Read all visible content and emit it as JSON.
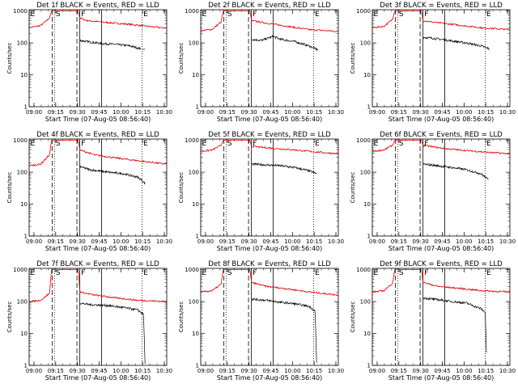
{
  "panels": [
    {
      "title": "Det 1f BLACK = Events, RED = LLD"
    },
    {
      "title": "Det 2f BLACK = Events, RED = LLD"
    },
    {
      "title": "Det 3f BLACK = Events, RED = LLD"
    },
    {
      "title": "Det 4f BLACK = Events, RED = LLD"
    },
    {
      "title": "Det 5f BLACK = Events, RED = LLD"
    },
    {
      "title": "Det 6f BLACK = Events, RED = LLD"
    },
    {
      "title": "Det 7f BLACK = Events, RED = LLD"
    },
    {
      "title": "Det 8f BLACK = Events, RED = LLD"
    },
    {
      "title": "Det 9f BLACK = Events, RED = LLD"
    }
  ],
  "xlabel": "Start Time (07-Aug-05 08:56:40)",
  "ylabel": "Counts/sec",
  "xticks": [
    "09:00",
    "09:15",
    "09:30",
    "09:45",
    "10:00",
    "10:15",
    "10:30"
  ],
  "yticks": [
    "1",
    "10",
    "100",
    "1000"
  ],
  "markers": [
    "E",
    "S",
    "F",
    "E"
  ],
  "colors": {
    "events": "#000000",
    "lld": "#e00000",
    "axis": "#000000"
  },
  "chart_data": {
    "type": "line",
    "scale_y": "log",
    "ylim": [
      1,
      1100
    ],
    "x_unit": "minutes after 08:56:40",
    "xlim": [
      0,
      95
    ],
    "x_tick_minutes": [
      3.33,
      18.33,
      33.33,
      48.33,
      63.33,
      78.33,
      93.33
    ],
    "marker_lines": [
      {
        "label": "E",
        "x": 0,
        "style": "dotted"
      },
      {
        "label": "",
        "x": 16,
        "style": "dashed"
      },
      {
        "label": "S",
        "x": 17.5,
        "style": "dotted"
      },
      {
        "label": "",
        "x": 33,
        "style": "dashed"
      },
      {
        "label": "F",
        "x": 35,
        "style": "solid"
      },
      {
        "label": "",
        "x": 50,
        "style": "solid"
      },
      {
        "label": "E",
        "x": 78,
        "style": "dotted"
      }
    ],
    "detectors": [
      {
        "events": [
          [
            35,
            120
          ],
          [
            40,
            110
          ],
          [
            50,
            95
          ],
          [
            60,
            90
          ],
          [
            70,
            80
          ],
          [
            77,
            65
          ]
        ],
        "lld": [
          [
            0,
            300
          ],
          [
            8,
            350
          ],
          [
            14,
            600
          ],
          [
            15.5,
            1000
          ],
          [
            34,
            1000
          ],
          [
            35,
            600
          ],
          [
            40,
            500
          ],
          [
            55,
            430
          ],
          [
            70,
            380
          ],
          [
            85,
            320
          ],
          [
            95,
            290
          ]
        ],
        "events_end": 78,
        "tail": [
          [
            78,
            65
          ],
          [
            79,
            62
          ],
          [
            80,
            64
          ]
        ]
      },
      {
        "events": [
          [
            35,
            130
          ],
          [
            42,
            120
          ],
          [
            50,
            160
          ],
          [
            55,
            130
          ],
          [
            65,
            110
          ],
          [
            75,
            80
          ],
          [
            81,
            60
          ]
        ],
        "lld": [
          [
            0,
            240
          ],
          [
            8,
            270
          ],
          [
            14,
            450
          ],
          [
            15.5,
            1000
          ],
          [
            34,
            1000
          ],
          [
            35,
            500
          ],
          [
            45,
            420
          ],
          [
            60,
            330
          ],
          [
            75,
            260
          ],
          [
            95,
            230
          ]
        ],
        "events_end": 82,
        "tail": []
      },
      {
        "events": [
          [
            35,
            150
          ],
          [
            42,
            140
          ],
          [
            55,
            115
          ],
          [
            65,
            100
          ],
          [
            75,
            80
          ],
          [
            81,
            65
          ]
        ],
        "lld": [
          [
            0,
            300
          ],
          [
            8,
            330
          ],
          [
            14,
            550
          ],
          [
            15.5,
            1000
          ],
          [
            34,
            1000
          ],
          [
            35,
            500
          ],
          [
            45,
            430
          ],
          [
            60,
            360
          ],
          [
            75,
            300
          ],
          [
            95,
            260
          ]
        ],
        "events_end": 82,
        "tail": []
      },
      {
        "events": [
          [
            35,
            150
          ],
          [
            42,
            120
          ],
          [
            55,
            100
          ],
          [
            65,
            90
          ],
          [
            75,
            70
          ],
          [
            78,
            55
          ],
          [
            80,
            45
          ]
        ],
        "lld": [
          [
            0,
            160
          ],
          [
            8,
            180
          ],
          [
            14,
            350
          ],
          [
            15.5,
            1000
          ],
          [
            34,
            1000
          ],
          [
            35,
            500
          ],
          [
            45,
            350
          ],
          [
            60,
            280
          ],
          [
            75,
            230
          ],
          [
            95,
            180
          ]
        ],
        "events_end": 81,
        "tail": []
      },
      {
        "events": [
          [
            35,
            180
          ],
          [
            45,
            170
          ],
          [
            55,
            160
          ],
          [
            65,
            140
          ],
          [
            75,
            110
          ],
          [
            80,
            90
          ]
        ],
        "lld": [
          [
            0,
            450
          ],
          [
            8,
            500
          ],
          [
            14,
            700
          ],
          [
            15.5,
            1000
          ],
          [
            34,
            1000
          ],
          [
            35,
            650
          ],
          [
            50,
            560
          ],
          [
            65,
            500
          ],
          [
            80,
            430
          ],
          [
            95,
            380
          ]
        ],
        "events_end": 81,
        "tail": []
      },
      {
        "events": [
          [
            35,
            180
          ],
          [
            45,
            160
          ],
          [
            55,
            140
          ],
          [
            65,
            120
          ],
          [
            75,
            90
          ],
          [
            78,
            70
          ],
          [
            80,
            60
          ]
        ],
        "lld": [
          [
            0,
            450
          ],
          [
            8,
            500
          ],
          [
            14,
            700
          ],
          [
            15.5,
            1000
          ],
          [
            34,
            1000
          ],
          [
            35,
            700
          ],
          [
            50,
            550
          ],
          [
            65,
            480
          ],
          [
            80,
            420
          ],
          [
            95,
            380
          ]
        ],
        "events_end": 81,
        "tail": []
      },
      {
        "events": [
          [
            35,
            90
          ],
          [
            42,
            80
          ],
          [
            55,
            75
          ],
          [
            65,
            65
          ],
          [
            75,
            55
          ],
          [
            79,
            40
          ],
          [
            80,
            1.2
          ]
        ],
        "lld": [
          [
            0,
            100
          ],
          [
            8,
            110
          ],
          [
            14,
            180
          ],
          [
            15.5,
            1000
          ],
          [
            34,
            1000
          ],
          [
            35,
            200
          ],
          [
            45,
            160
          ],
          [
            60,
            130
          ],
          [
            75,
            110
          ],
          [
            95,
            100
          ]
        ],
        "events_end": 80,
        "tail": []
      },
      {
        "events": [
          [
            35,
            120
          ],
          [
            45,
            110
          ],
          [
            55,
            95
          ],
          [
            65,
            85
          ],
          [
            75,
            70
          ],
          [
            79,
            50
          ],
          [
            80,
            1.2
          ]
        ],
        "lld": [
          [
            0,
            200
          ],
          [
            8,
            220
          ],
          [
            14,
            350
          ],
          [
            15.5,
            1000
          ],
          [
            34,
            1000
          ],
          [
            35,
            400
          ],
          [
            45,
            300
          ],
          [
            60,
            250
          ],
          [
            75,
            200
          ],
          [
            95,
            160
          ]
        ],
        "events_end": 80,
        "tail": []
      },
      {
        "events": [
          [
            35,
            130
          ],
          [
            45,
            115
          ],
          [
            55,
            100
          ],
          [
            65,
            90
          ],
          [
            75,
            60
          ],
          [
            78,
            45
          ],
          [
            79,
            1.2
          ]
        ],
        "lld": [
          [
            0,
            200
          ],
          [
            8,
            220
          ],
          [
            14,
            380
          ],
          [
            15.5,
            1000
          ],
          [
            34,
            1000
          ],
          [
            35,
            400
          ],
          [
            45,
            300
          ],
          [
            60,
            260
          ],
          [
            75,
            220
          ],
          [
            95,
            200
          ]
        ],
        "events_end": 79,
        "tail": []
      }
    ]
  }
}
